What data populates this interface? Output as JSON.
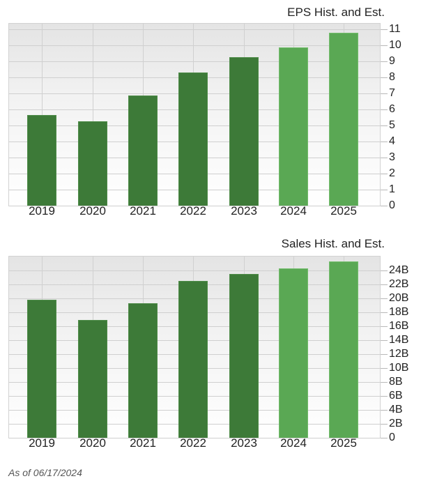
{
  "chart_data": [
    {
      "type": "bar",
      "title": "EPS Hist. and Est.",
      "categories": [
        "2019",
        "2020",
        "2021",
        "2022",
        "2023",
        "2024",
        "2025"
      ],
      "series": [
        {
          "name": "EPS",
          "values": [
            5.67,
            5.24,
            6.88,
            8.31,
            9.26,
            9.87,
            10.78
          ]
        }
      ],
      "bar_kind": [
        "historical",
        "historical",
        "historical",
        "historical",
        "historical",
        "estimate",
        "estimate"
      ],
      "xlabel": "",
      "ylabel": "",
      "ylim": [
        0,
        11
      ],
      "yticks": [
        "0",
        "1",
        "2",
        "3",
        "4",
        "5",
        "6",
        "7",
        "8",
        "9",
        "10",
        "11"
      ],
      "y_axis_position": "right",
      "grid": true,
      "legend": "none"
    },
    {
      "type": "bar",
      "title": "Sales Hist. and Est.",
      "categories": [
        "2019",
        "2020",
        "2021",
        "2022",
        "2023",
        "2024",
        "2025"
      ],
      "series": [
        {
          "name": "Sales (B)",
          "values": [
            19.8,
            16.9,
            19.3,
            22.5,
            23.5,
            24.3,
            25.3
          ]
        }
      ],
      "bar_kind": [
        "historical",
        "historical",
        "historical",
        "historical",
        "historical",
        "estimate",
        "estimate"
      ],
      "xlabel": "",
      "ylabel": "",
      "ylim": [
        0,
        26
      ],
      "yticks": [
        "0",
        "2B",
        "4B",
        "6B",
        "8B",
        "10B",
        "12B",
        "14B",
        "16B",
        "18B",
        "20B",
        "22B",
        "24B"
      ],
      "y_axis_position": "right",
      "grid": true,
      "legend": "none"
    }
  ],
  "colors": {
    "historical": "#3d7a38",
    "estimate": "#5aa854",
    "grid": "#cfcfcf"
  },
  "eps": {
    "title": "EPS Hist. and Est.",
    "yticks": [
      "0",
      "1",
      "2",
      "3",
      "4",
      "5",
      "6",
      "7",
      "8",
      "9",
      "10",
      "11"
    ],
    "categories": [
      "2019",
      "2020",
      "2021",
      "2022",
      "2023",
      "2024",
      "2025"
    ]
  },
  "sales": {
    "title": "Sales Hist. and Est.",
    "yticks": [
      "0",
      "2B",
      "4B",
      "6B",
      "8B",
      "10B",
      "12B",
      "14B",
      "16B",
      "18B",
      "20B",
      "22B",
      "24B"
    ],
    "categories": [
      "2019",
      "2020",
      "2021",
      "2022",
      "2023",
      "2024",
      "2025"
    ]
  },
  "footer": {
    "as_of": "As of 06/17/2024"
  }
}
